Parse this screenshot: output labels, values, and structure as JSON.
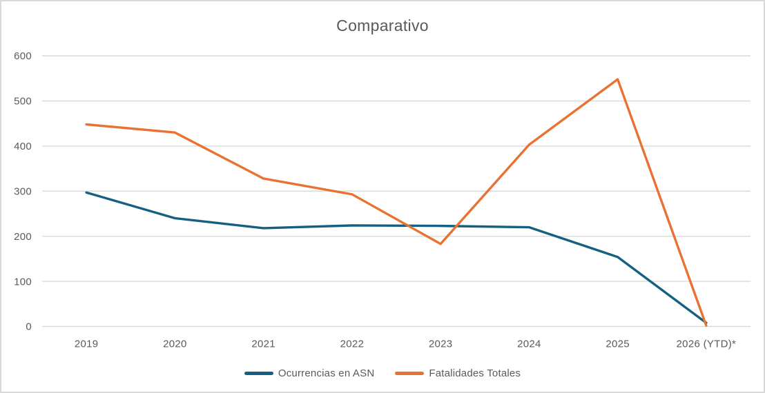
{
  "chart_data": {
    "type": "line",
    "title": "Comparativo",
    "categories": [
      "2019",
      "2020",
      "2021",
      "2022",
      "2023",
      "2024",
      "2025",
      "2026 (YTD)*"
    ],
    "series": [
      {
        "name": "Ocurrencias en ASN",
        "color": "#156082",
        "values": [
          297,
          240,
          218,
          224,
          223,
          220,
          154,
          8
        ]
      },
      {
        "name": "Fatalidades Totales",
        "color": "#E97132",
        "values": [
          448,
          430,
          328,
          293,
          183,
          403,
          548,
          2
        ]
      }
    ],
    "xlabel": "",
    "ylabel": "",
    "ylim": [
      0,
      600
    ],
    "yticks": [
      0,
      100,
      200,
      300,
      400,
      500,
      600
    ],
    "grid": true,
    "legend_position": "bottom",
    "colors": {
      "text": "#595959",
      "gridline": "#D9D9D9",
      "border": "#D9D9D9",
      "background": "#FFFFFF"
    }
  }
}
